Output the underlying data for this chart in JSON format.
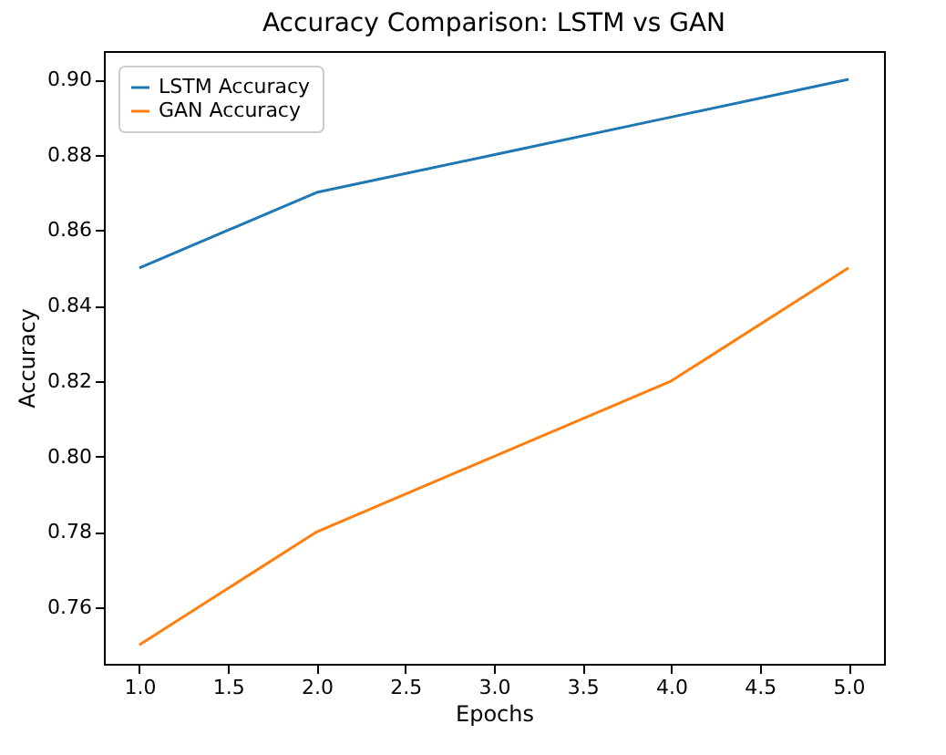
{
  "chart_data": {
    "type": "line",
    "title": "Accuracy Comparison: LSTM vs GAN",
    "xlabel": "Epochs",
    "ylabel": "Accuracy",
    "x": [
      1,
      2,
      3,
      4,
      5
    ],
    "series": [
      {
        "name": "LSTM Accuracy",
        "color": "#1f77b4",
        "values": [
          0.85,
          0.87,
          0.88,
          0.89,
          0.9
        ]
      },
      {
        "name": "GAN Accuracy",
        "color": "#ff7f0e",
        "values": [
          0.75,
          0.78,
          0.8,
          0.82,
          0.85
        ]
      }
    ],
    "xlim": [
      0.8,
      5.2
    ],
    "xticks": [
      {
        "value": 1,
        "label": "1.0"
      },
      1.5,
      {
        "value": 2,
        "label": "2.0"
      },
      2.5,
      {
        "value": 3,
        "label": "3.0"
      },
      3.5,
      {
        "value": 4,
        "label": "4.0"
      },
      4.5,
      {
        "value": 5,
        "label": "5.0"
      }
    ],
    "ylim": [
      0.745,
      0.9075
    ],
    "yticks": [
      0.76,
      0.78,
      {
        "value": 0.8,
        "label": "0.80"
      },
      0.82,
      0.84,
      0.86,
      0.88,
      {
        "value": 0.9,
        "label": "0.90"
      }
    ],
    "legend": "top left",
    "grid": false,
    "line_style": "solid",
    "marker": "none"
  }
}
